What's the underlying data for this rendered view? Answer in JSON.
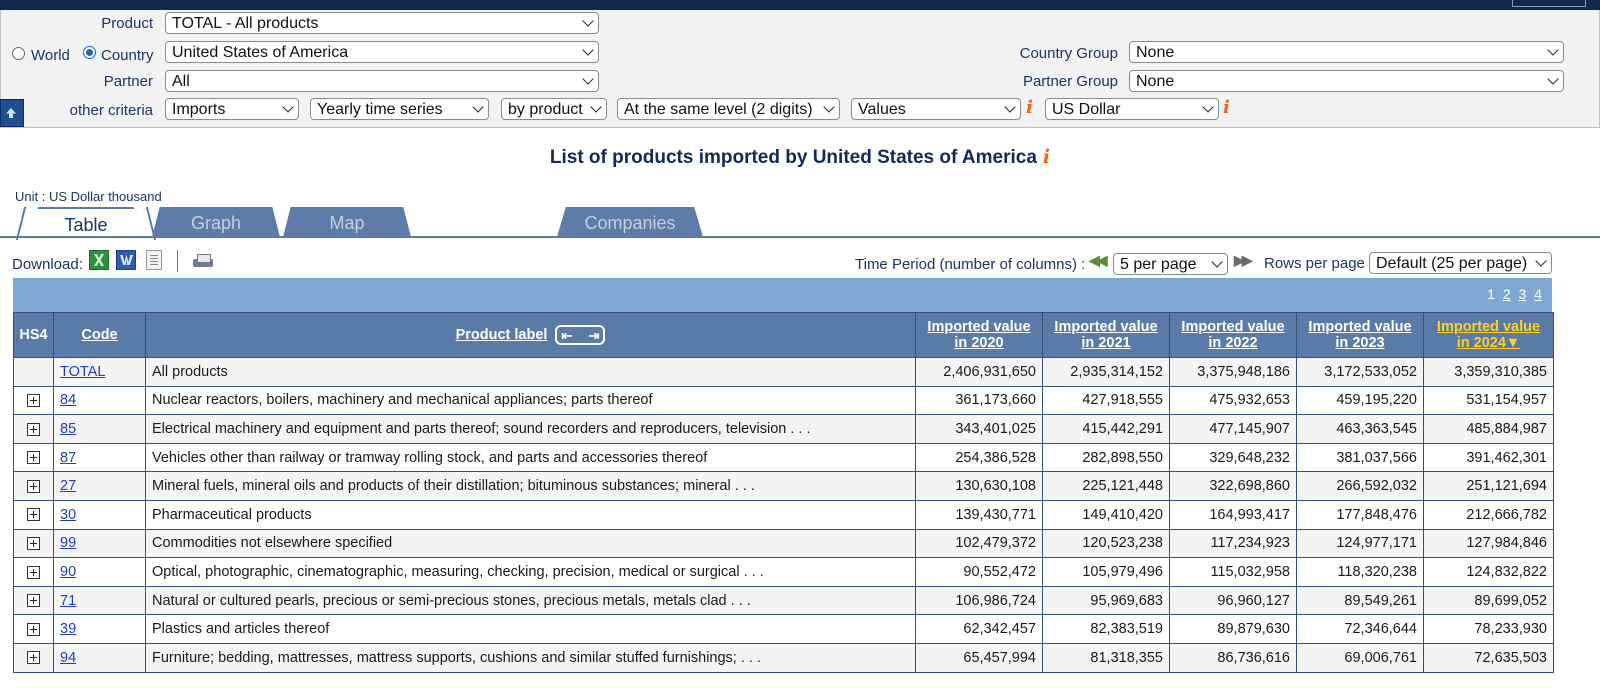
{
  "criteria": {
    "product_label": "Product",
    "product_value": "TOTAL - All products",
    "world_label": "World",
    "country_label": "Country",
    "country_value": "United States of America",
    "partner_label": "Partner",
    "partner_value": "All",
    "country_group_label": "Country Group",
    "country_group_value": "None",
    "partner_group_label": "Partner Group",
    "partner_group_value": "None",
    "other_label": "other criteria",
    "flow": "Imports",
    "series": "Yearly time series",
    "by": "by product",
    "level": "At the same level (2 digits)",
    "indicator": "Values",
    "currency": "US Dollar",
    "info_glyph": "i"
  },
  "page_title": "List of products imported by United States of America",
  "unit": "Unit : US Dollar thousand",
  "tabs": [
    "Table",
    "Graph",
    "Map",
    "Companies"
  ],
  "toolbar": {
    "download_label": "Download:",
    "time_period_label": "Time Period (number of columns) :",
    "time_period_value": "5 per page",
    "rows_per_page_label": "Rows per page",
    "rows_per_page_value": "Default (25 per page)"
  },
  "pagination": [
    "1",
    "2",
    "3",
    "4"
  ],
  "table": {
    "headers": {
      "hs4": "HS4",
      "code": "Code",
      "label": "Product label",
      "years": [
        [
          "Imported value",
          "in 2020"
        ],
        [
          "Imported value",
          "in 2021"
        ],
        [
          "Imported value",
          "in 2022"
        ],
        [
          "Imported value",
          "in 2023"
        ],
        [
          "Imported value",
          "in 2024▼"
        ]
      ]
    },
    "rows": [
      {
        "code": "TOTAL",
        "label": "All products",
        "values": [
          "2,406,931,650",
          "2,935,314,152",
          "3,375,948,186",
          "3,172,533,052",
          "3,359,310,385"
        ]
      },
      {
        "code": "84",
        "label": "Nuclear reactors, boilers, machinery and mechanical appliances; parts thereof",
        "values": [
          "361,173,660",
          "427,918,555",
          "475,932,653",
          "459,195,220",
          "531,154,957"
        ]
      },
      {
        "code": "85",
        "label": "Electrical machinery and equipment and parts thereof; sound recorders and reproducers, television . . .",
        "values": [
          "343,401,025",
          "415,442,291",
          "477,145,907",
          "463,363,545",
          "485,884,987"
        ]
      },
      {
        "code": "87",
        "label": "Vehicles other than railway or tramway rolling stock, and parts and accessories thereof",
        "values": [
          "254,386,528",
          "282,898,550",
          "329,648,232",
          "381,037,566",
          "391,462,301"
        ]
      },
      {
        "code": "27",
        "label": "Mineral fuels, mineral oils and products of their distillation; bituminous substances; mineral . . .",
        "values": [
          "130,630,108",
          "225,121,448",
          "322,698,860",
          "266,592,032",
          "251,121,694"
        ]
      },
      {
        "code": "30",
        "label": "Pharmaceutical products",
        "values": [
          "139,430,771",
          "149,410,420",
          "164,993,417",
          "177,848,476",
          "212,666,782"
        ]
      },
      {
        "code": "99",
        "label": "Commodities not elsewhere specified",
        "values": [
          "102,479,372",
          "120,523,238",
          "117,234,923",
          "124,977,171",
          "127,984,846"
        ]
      },
      {
        "code": "90",
        "label": "Optical, photographic, cinematographic, measuring, checking, precision, medical or surgical . . .",
        "values": [
          "90,552,472",
          "105,979,496",
          "115,032,958",
          "118,320,238",
          "124,832,822"
        ]
      },
      {
        "code": "71",
        "label": "Natural or cultured pearls, precious or semi-precious stones, precious metals, metals clad . . .",
        "values": [
          "106,986,724",
          "95,969,683",
          "96,960,127",
          "89,549,261",
          "89,699,052"
        ]
      },
      {
        "code": "39",
        "label": "Plastics and articles thereof",
        "values": [
          "62,342,457",
          "82,383,519",
          "89,879,630",
          "72,346,644",
          "78,233,930"
        ]
      },
      {
        "code": "94",
        "label": "Furniture; bedding, mattresses, mattress supports, cushions and similar stuffed furnishings; . . .",
        "values": [
          "65,457,994",
          "81,318,355",
          "86,736,616",
          "69,006,761",
          "72,635,503"
        ]
      }
    ]
  }
}
